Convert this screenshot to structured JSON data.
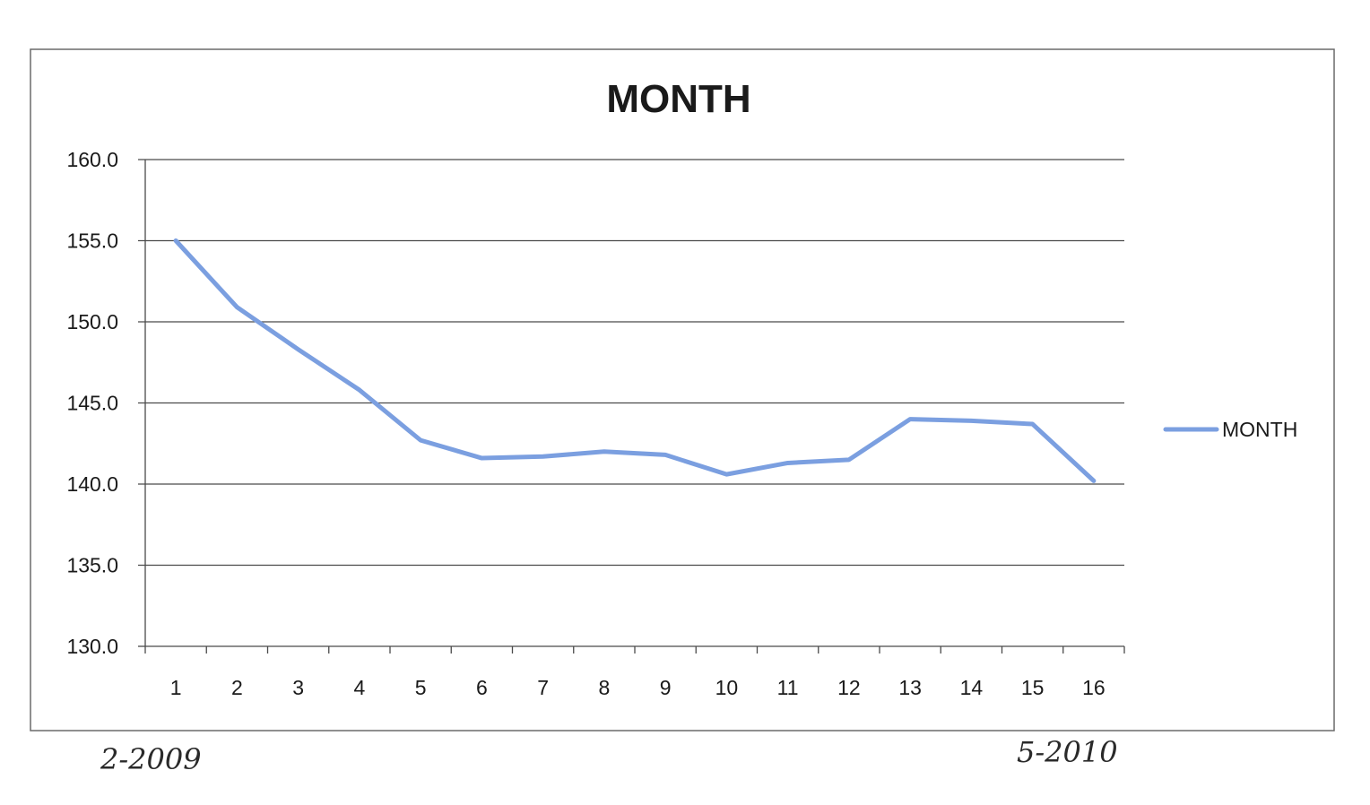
{
  "chart_data": {
    "type": "line",
    "title": "MONTH",
    "xlabel": "",
    "ylabel": "",
    "categories": [
      "1",
      "2",
      "3",
      "4",
      "5",
      "6",
      "7",
      "8",
      "9",
      "10",
      "11",
      "12",
      "13",
      "14",
      "15",
      "16"
    ],
    "y_tick_labels": [
      "130.0",
      "135.0",
      "140.0",
      "145.0",
      "150.0",
      "155.0",
      "160.0"
    ],
    "ylim": [
      130,
      160
    ],
    "y_ticks": [
      130,
      135,
      140,
      145,
      150,
      155,
      160
    ],
    "grid": true,
    "legend_position": "right",
    "series": [
      {
        "name": "MONTH",
        "color": "#7b9fe0",
        "values": [
          155.0,
          150.9,
          148.3,
          145.8,
          142.7,
          141.6,
          141.7,
          142.0,
          141.8,
          140.6,
          141.3,
          141.5,
          144.0,
          143.9,
          143.7,
          140.2
        ]
      }
    ]
  },
  "annotations": {
    "start_note": "2-2009",
    "end_note": "5-2010"
  }
}
